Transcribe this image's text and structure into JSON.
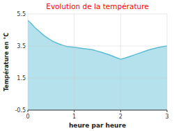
{
  "chart_data": {
    "type": "area",
    "title": "Evolution de la température",
    "x_label": "heure par heure",
    "y_label": "Température en °C",
    "x": [
      0,
      0.08,
      0.15,
      0.25,
      0.35,
      0.45,
      0.55,
      0.65,
      0.75,
      0.85,
      1.0,
      1.1,
      1.2,
      1.3,
      1.4,
      1.5,
      1.6,
      1.7,
      1.8,
      1.9,
      2.0,
      2.1,
      2.2,
      2.3,
      2.4,
      2.5,
      2.6,
      2.7,
      2.8,
      2.9,
      3.0
    ],
    "values": [
      5.1,
      4.88,
      4.65,
      4.4,
      4.15,
      3.95,
      3.78,
      3.65,
      3.55,
      3.47,
      3.42,
      3.38,
      3.34,
      3.3,
      3.26,
      3.18,
      3.1,
      3.0,
      2.9,
      2.78,
      2.68,
      2.75,
      2.85,
      2.95,
      3.05,
      3.15,
      3.25,
      3.33,
      3.4,
      3.46,
      3.5
    ],
    "color": "#5bbdd4",
    "xlim": [
      0,
      3
    ],
    "ylim": [
      -0.5,
      5.5
    ],
    "xticks": [
      0,
      1,
      2,
      3
    ],
    "yticks": [
      -0.5,
      1.5,
      3.5,
      5.5
    ],
    "grid": true
  }
}
